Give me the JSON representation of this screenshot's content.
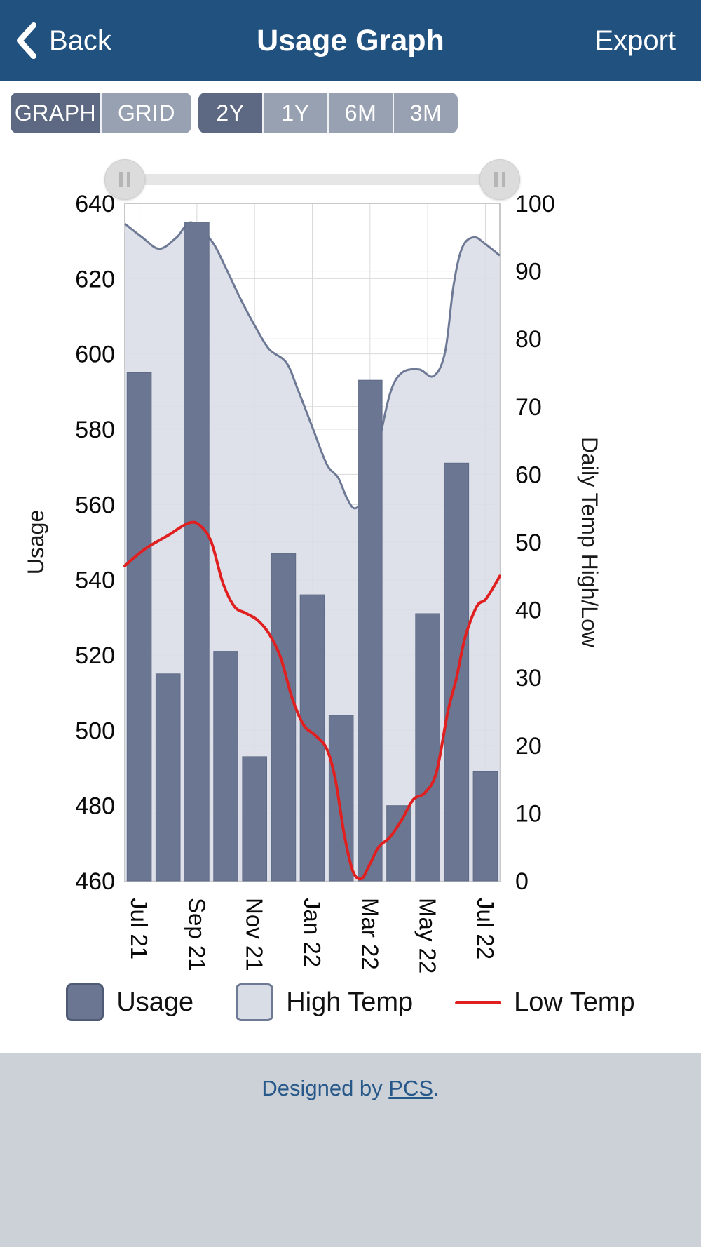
{
  "header": {
    "back_label": "Back",
    "title": "Usage Graph",
    "export_label": "Export"
  },
  "view_toggle": {
    "options": [
      "GRAPH",
      "GRID"
    ],
    "selected": "GRAPH"
  },
  "range_toggle": {
    "options": [
      "2Y",
      "1Y",
      "6M",
      "3M"
    ],
    "selected": "2Y"
  },
  "colors": {
    "header_bg": "#21517f",
    "seg_selected": "#5d6983",
    "seg_unselected": "#98a1b2",
    "footer_bg": "#ccd1d8",
    "footer_text": "#27588a"
  },
  "chart_data": {
    "type": "combo",
    "title": "",
    "grid": true,
    "x_tick_labels": [
      "Jul 21",
      "Sep 21",
      "Nov 21",
      "Jan 22",
      "Mar 22",
      "May 22",
      "Jul 22"
    ],
    "x_tick_bar_indices": [
      0,
      2,
      4,
      6,
      8,
      10,
      12
    ],
    "axes": {
      "left": {
        "title": "Usage",
        "min": 460,
        "max": 640,
        "step": 20,
        "tick_labels": [
          "460",
          "480",
          "500",
          "520",
          "540",
          "560",
          "580",
          "600",
          "620",
          "640"
        ]
      },
      "right": {
        "title": "Daily Temp High/Low",
        "min": 0,
        "max": 100,
        "step": 10,
        "tick_labels": [
          "0",
          "10",
          "20",
          "30",
          "40",
          "50",
          "60",
          "70",
          "80",
          "90",
          "100"
        ]
      }
    },
    "series": [
      {
        "name": "Usage",
        "type": "bar",
        "axis": "left",
        "color": "#6b7792",
        "values": [
          595,
          515,
          635,
          521,
          493,
          547,
          536,
          504,
          593,
          480,
          531,
          571,
          489
        ]
      },
      {
        "name": "High Temp",
        "type": "area",
        "axis": "right",
        "fill": "#d9dde6",
        "stroke": "#6e7a95",
        "points": [
          [
            0,
            97
          ],
          [
            0.6,
            95
          ],
          [
            1.2,
            93.3
          ],
          [
            1.8,
            95
          ],
          [
            2.3,
            97.2
          ],
          [
            3,
            94.5
          ],
          [
            3.5,
            90.5
          ],
          [
            4,
            86
          ],
          [
            4.5,
            82
          ],
          [
            5,
            78.5
          ],
          [
            5.6,
            76.5
          ],
          [
            6,
            72.5
          ],
          [
            6.5,
            67
          ],
          [
            7,
            61.5
          ],
          [
            7.4,
            59.5
          ],
          [
            7.7,
            56.5
          ],
          [
            8,
            55
          ],
          [
            8.4,
            57.5
          ],
          [
            8.8,
            64.5
          ],
          [
            9.2,
            72
          ],
          [
            9.6,
            75
          ],
          [
            10.2,
            75.5
          ],
          [
            10.7,
            74.5
          ],
          [
            11.1,
            78
          ],
          [
            11.4,
            88
          ],
          [
            11.7,
            93.5
          ],
          [
            12.1,
            95
          ],
          [
            12.5,
            94
          ],
          [
            13,
            92.3
          ]
        ]
      },
      {
        "name": "Low Temp",
        "type": "line",
        "axis": "right",
        "color": "#e02020",
        "points": [
          [
            0,
            46.5
          ],
          [
            0.7,
            49
          ],
          [
            1.5,
            51
          ],
          [
            2.2,
            52.8
          ],
          [
            2.6,
            52.5
          ],
          [
            3,
            50
          ],
          [
            3.4,
            44
          ],
          [
            3.8,
            40.5
          ],
          [
            4.2,
            39.5
          ],
          [
            4.6,
            38.5
          ],
          [
            5,
            36.5
          ],
          [
            5.4,
            33
          ],
          [
            5.8,
            27
          ],
          [
            6.2,
            23
          ],
          [
            6.6,
            21.5
          ],
          [
            7,
            19.5
          ],
          [
            7.3,
            15
          ],
          [
            7.6,
            7
          ],
          [
            7.9,
            1.5
          ],
          [
            8.2,
            0.3
          ],
          [
            8.5,
            2.5
          ],
          [
            8.8,
            5
          ],
          [
            9.2,
            6.5
          ],
          [
            9.6,
            9
          ],
          [
            10,
            12
          ],
          [
            10.4,
            13
          ],
          [
            10.8,
            16
          ],
          [
            11.2,
            25
          ],
          [
            11.5,
            30
          ],
          [
            11.8,
            36
          ],
          [
            12.2,
            40.5
          ],
          [
            12.5,
            41.5
          ],
          [
            12.8,
            43.5
          ],
          [
            13,
            45
          ]
        ]
      }
    ],
    "legend": {
      "position": "bottom"
    }
  },
  "footer": {
    "prefix": "Designed by ",
    "link_text": "PCS",
    "suffix": "."
  }
}
